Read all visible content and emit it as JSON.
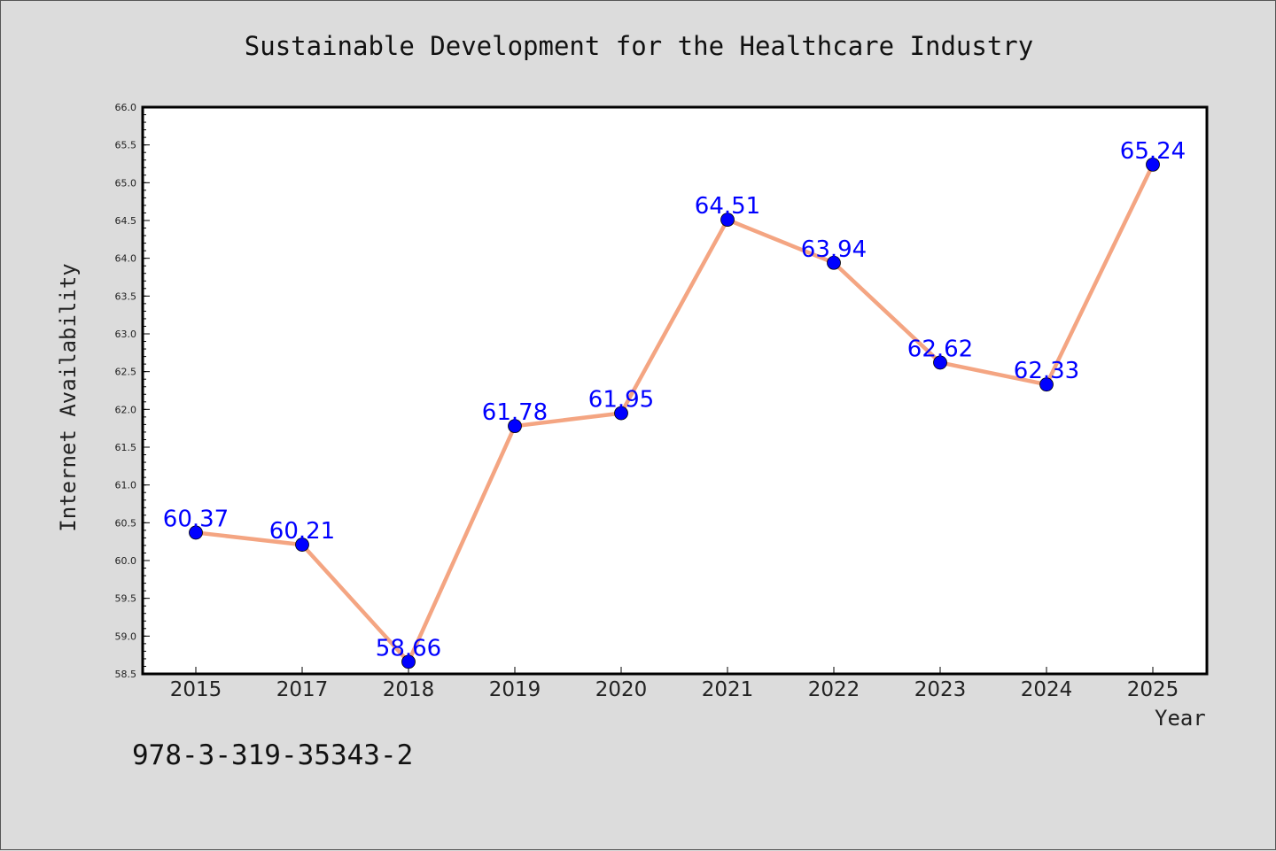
{
  "chart_data": {
    "type": "line",
    "title": "Sustainable Development for the Healthcare Industry",
    "xlabel": "Year",
    "ylabel": "Internet Availability",
    "categories": [
      "2015",
      "2017",
      "2018",
      "2019",
      "2020",
      "2021",
      "2022",
      "2023",
      "2024",
      "2025"
    ],
    "series": [
      {
        "values": [
          60.37,
          60.21,
          58.66,
          61.78,
          61.95,
          64.51,
          63.94,
          62.62,
          62.33,
          65.24
        ],
        "data_labels": [
          "60.37",
          "60.21",
          "58.66",
          "61.78",
          "61.95",
          "64.51",
          "63.94",
          "62.62",
          "62.33",
          "65.24"
        ],
        "line_color": "#f4a582",
        "marker_color": "#0000ff"
      }
    ],
    "ylim": [
      58.5,
      66.0
    ],
    "yticks": [
      "58.5",
      "59.0",
      "59.5",
      "60.0",
      "60.5",
      "61.0",
      "61.5",
      "62.0",
      "62.5",
      "63.0",
      "63.5",
      "64.0",
      "64.5",
      "65.0",
      "65.5",
      "66.0"
    ],
    "grid": false,
    "legend": "none",
    "plot_background": "#ffffff",
    "figure_background": "#dcdcdc",
    "label_color": "#0000ff"
  },
  "footer": {
    "code": "978-3-319-35343-2"
  }
}
